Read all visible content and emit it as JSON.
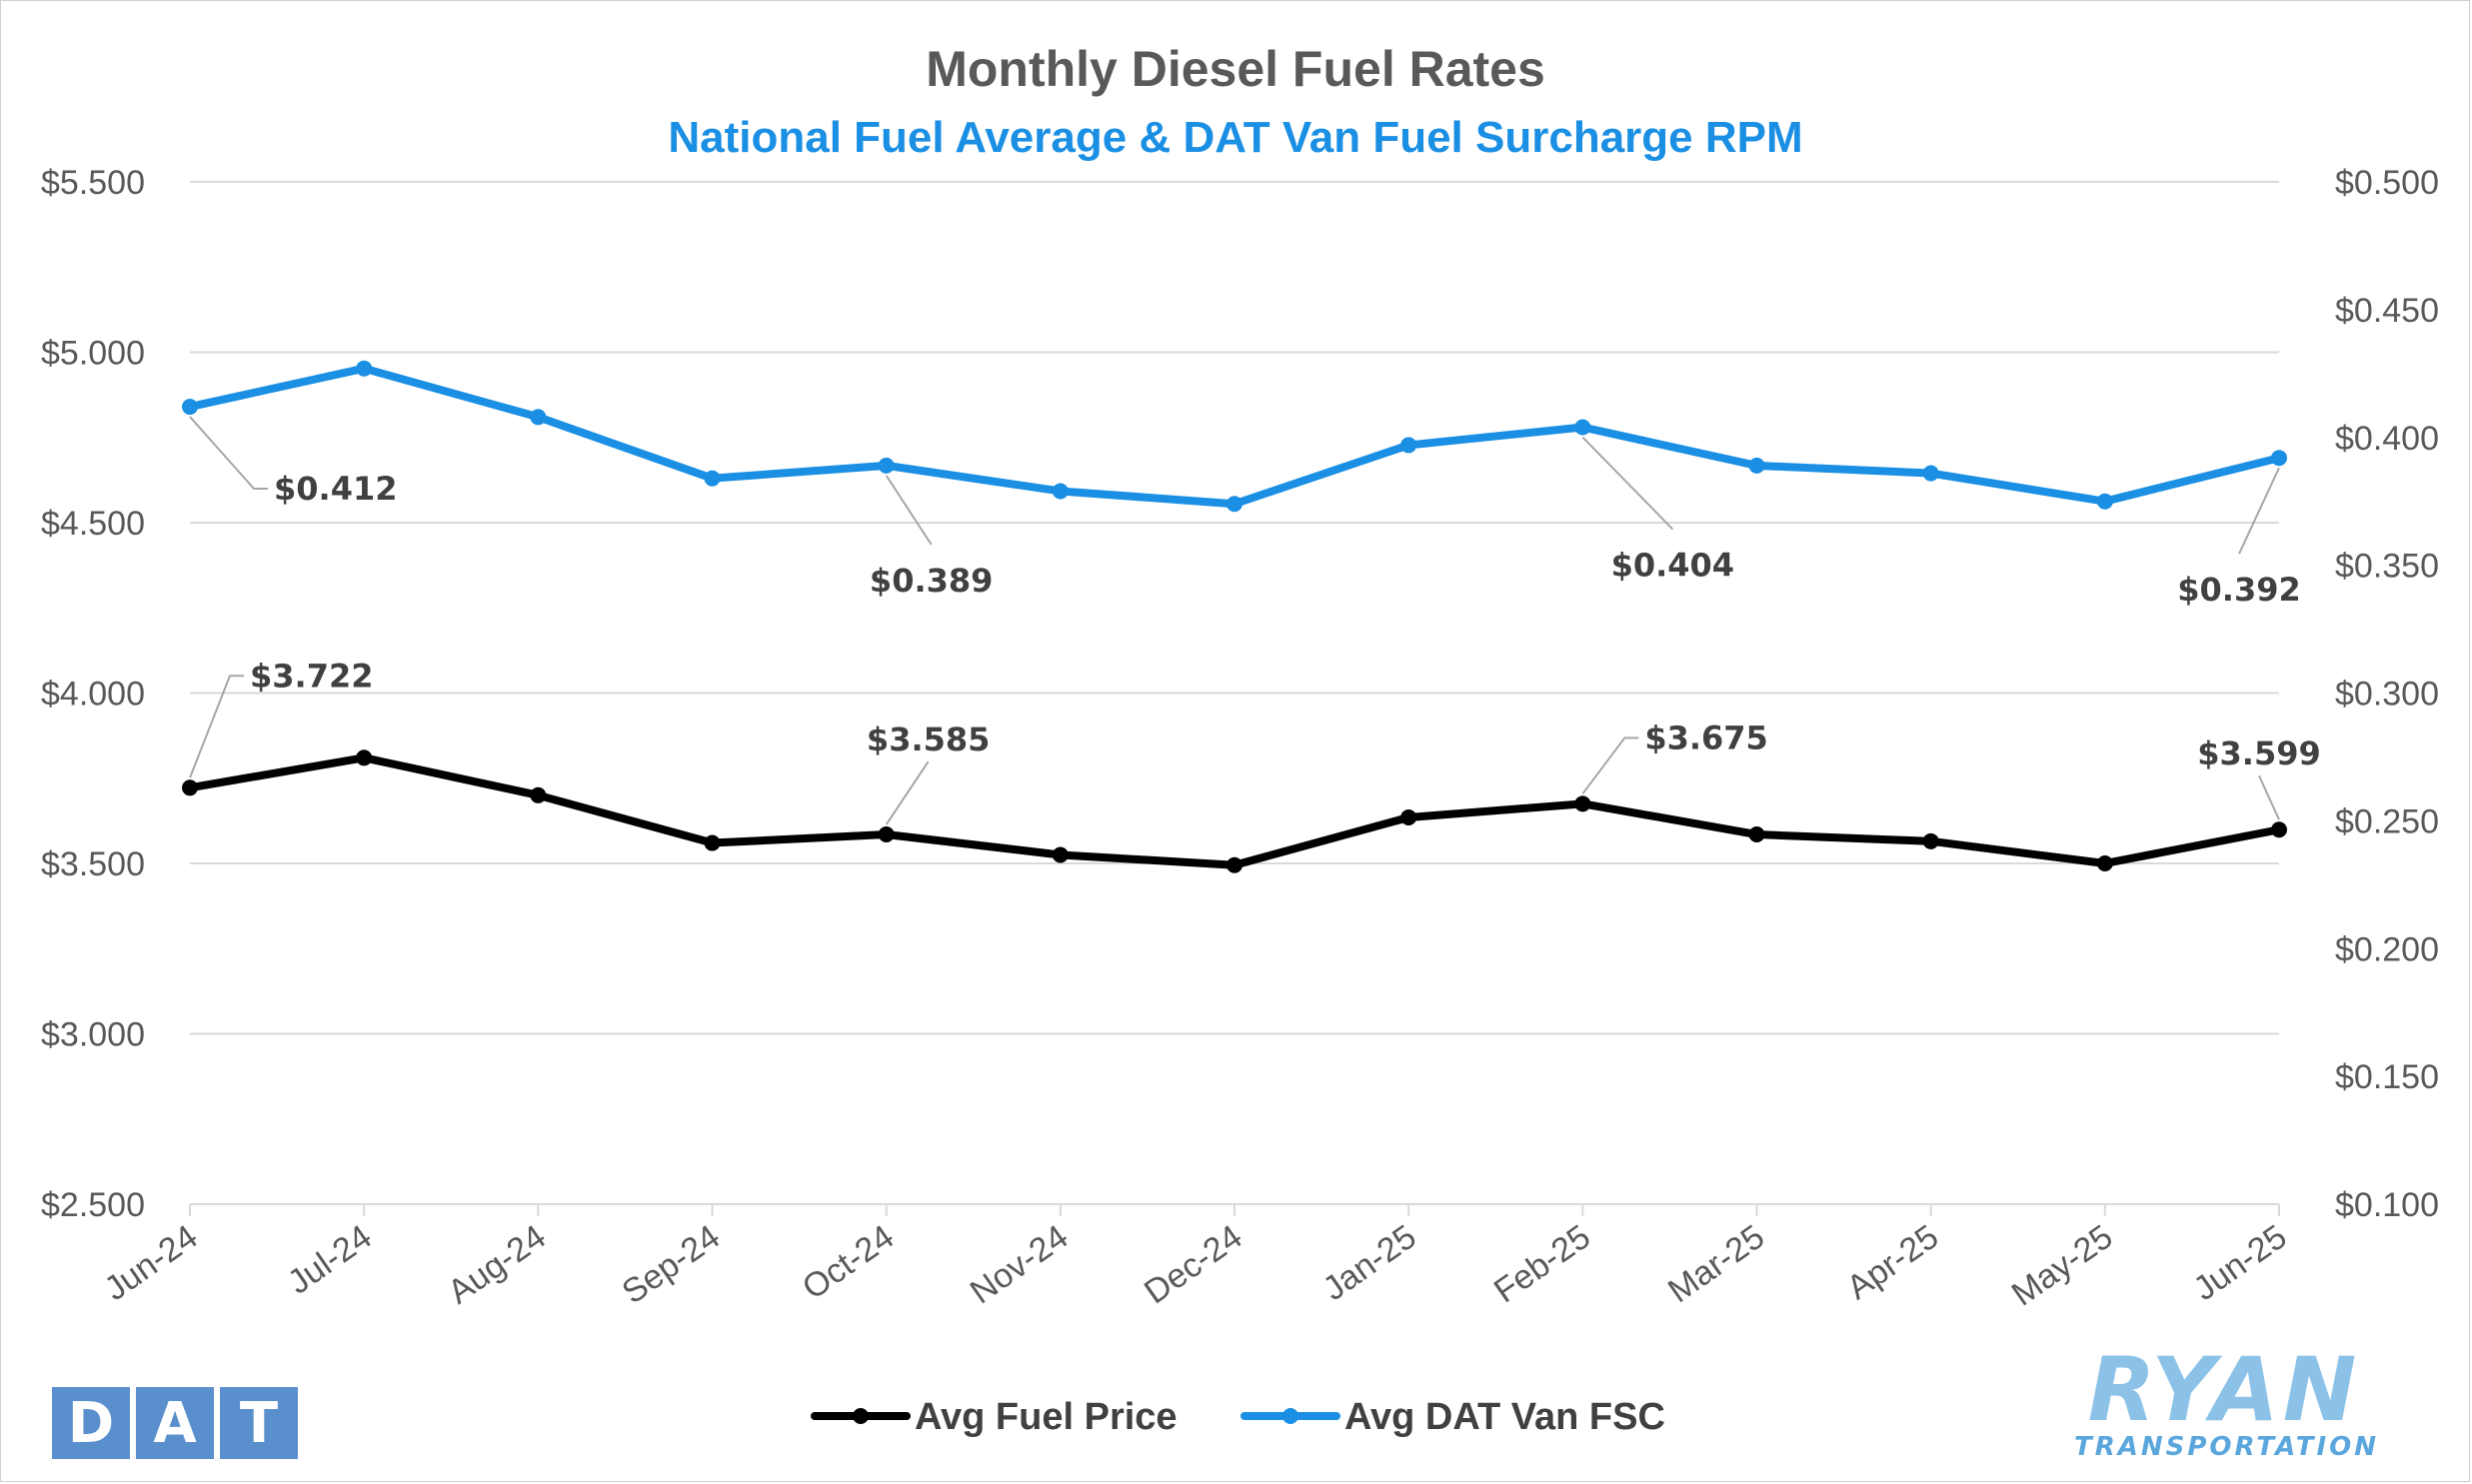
{
  "chart_data": {
    "type": "line",
    "title": "Monthly Diesel Fuel Rates",
    "subtitle": "National Fuel Average & DAT Van Fuel Surcharge RPM",
    "categories": [
      "Jun-24",
      "Jul-24",
      "Aug-24",
      "Sep-24",
      "Oct-24",
      "Nov-24",
      "Dec-24",
      "Jan-25",
      "Feb-25",
      "Mar-25",
      "Apr-25",
      "May-25",
      "Jun-25"
    ],
    "y_left": {
      "min": 2.5,
      "max": 5.5,
      "step": 0.5,
      "tick_labels": [
        "$2.500",
        "$3.000",
        "$3.500",
        "$4.000",
        "$4.500",
        "$5.000",
        "$5.500"
      ]
    },
    "y_right": {
      "min": 0.1,
      "max": 0.5,
      "step": 0.05,
      "tick_labels": [
        "$0.100",
        "$0.150",
        "$0.200",
        "$0.250",
        "$0.300",
        "$0.350",
        "$0.400",
        "$0.450",
        "$0.500"
      ]
    },
    "grid": true,
    "legend_position": "bottom",
    "series": [
      {
        "name": "Avg Fuel Price",
        "axis": "left",
        "color": "#000000",
        "values": [
          3.722,
          3.81,
          3.7,
          3.56,
          3.585,
          3.525,
          3.495,
          3.635,
          3.675,
          3.585,
          3.565,
          3.5,
          3.599
        ],
        "data_labels": [
          {
            "index": 0,
            "text": "$3.722"
          },
          {
            "index": 4,
            "text": "$3.585"
          },
          {
            "index": 8,
            "text": "$3.675"
          },
          {
            "index": 12,
            "text": "$3.599"
          }
        ]
      },
      {
        "name": "Avg DAT Van FSC",
        "axis": "right",
        "color": "#1a8fe3",
        "values": [
          0.412,
          0.427,
          0.408,
          0.384,
          0.389,
          0.379,
          0.374,
          0.397,
          0.404,
          0.389,
          0.386,
          0.375,
          0.392
        ],
        "data_labels": [
          {
            "index": 0,
            "text": "$0.412"
          },
          {
            "index": 4,
            "text": "$0.389"
          },
          {
            "index": 8,
            "text": "$0.404"
          },
          {
            "index": 12,
            "text": "$0.392"
          }
        ]
      }
    ]
  },
  "logos": {
    "dat": {
      "letters": [
        "D",
        "A",
        "T"
      ],
      "color": "#5a8fce"
    },
    "ryan": {
      "main": "RYAN",
      "sub": "TRANSPORTATION",
      "color": "#8cc2e8"
    }
  },
  "colors": {
    "title": "#595959",
    "subtitle": "#1a8fe3",
    "grid": "#d9d9d9"
  }
}
